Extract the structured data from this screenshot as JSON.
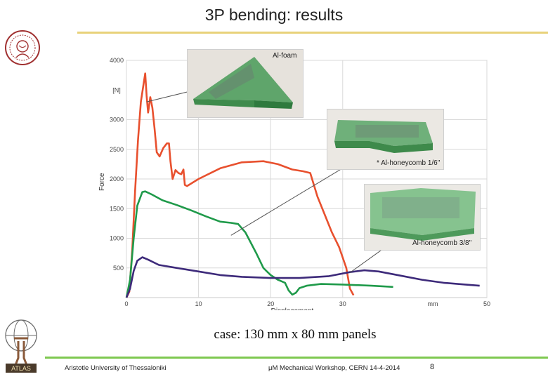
{
  "slide": {
    "title": "3P bending: results",
    "subtitle": "case: 130 mm x 80 mm panels",
    "footer_left": "Aristotle University of Thessaloniki",
    "footer_center": "μM Mechanical Workshop, CERN 14-4-2014",
    "page_number": "8",
    "accent_line_color": "#e8d27a",
    "footer_line_color": "#7ec850"
  },
  "logos": {
    "top_left": "university-seal-icon",
    "bottom_left": "atlas-logo-icon",
    "atlas_text": "ATLAS"
  },
  "photos": [
    {
      "label": "Al-foam",
      "icon": "al-foam-panel-photo"
    },
    {
      "label": "* Al-honeycomb 1/6\"",
      "icon": "al-honeycomb-1-6-panel-photo"
    },
    {
      "label": "Al-honeycomb 3/8\"",
      "icon": "al-honeycomb-3-8-panel-photo"
    }
  ],
  "chart_data": {
    "type": "line",
    "xlabel": "Displacement",
    "x_unit": "mm",
    "ylabel": "Force",
    "y_unit": "[N]",
    "xlim": [
      0,
      50
    ],
    "ylim": [
      0,
      4000
    ],
    "x_ticks": [
      0,
      10,
      20,
      30,
      50
    ],
    "y_ticks": [
      500,
      1000,
      1500,
      2000,
      2500,
      3000,
      4000
    ],
    "grid": true,
    "series": [
      {
        "color": "#e8502e",
        "points": [
          [
            0,
            0
          ],
          [
            0.4,
            100
          ],
          [
            0.8,
            800
          ],
          [
            1.2,
            1800
          ],
          [
            1.6,
            2650
          ],
          [
            2.0,
            3300
          ],
          [
            2.4,
            3620
          ],
          [
            2.6,
            3780
          ],
          [
            2.8,
            3400
          ],
          [
            3.0,
            3120
          ],
          [
            3.3,
            3380
          ],
          [
            3.6,
            3200
          ],
          [
            3.9,
            2850
          ],
          [
            4.2,
            2450
          ],
          [
            4.6,
            2380
          ],
          [
            5.1,
            2520
          ],
          [
            5.6,
            2600
          ],
          [
            5.9,
            2600
          ],
          [
            6.1,
            2300
          ],
          [
            6.4,
            2000
          ],
          [
            6.8,
            2150
          ],
          [
            7.2,
            2100
          ],
          [
            7.6,
            2080
          ],
          [
            7.9,
            2160
          ],
          [
            8.1,
            1900
          ],
          [
            8.4,
            1880
          ],
          [
            10,
            2000
          ],
          [
            13,
            2180
          ],
          [
            16,
            2280
          ],
          [
            19,
            2300
          ],
          [
            21,
            2250
          ],
          [
            23,
            2160
          ],
          [
            24.5,
            2130
          ],
          [
            25.5,
            2100
          ],
          [
            26.5,
            1700
          ],
          [
            27.5,
            1400
          ],
          [
            28.5,
            1100
          ],
          [
            29.5,
            850
          ],
          [
            30.5,
            500
          ],
          [
            31.0,
            150
          ],
          [
            31.5,
            40
          ]
        ]
      },
      {
        "color": "#1f9a4a",
        "points": [
          [
            0,
            0
          ],
          [
            0.5,
            300
          ],
          [
            1.0,
            1000
          ],
          [
            1.5,
            1550
          ],
          [
            2.2,
            1780
          ],
          [
            2.6,
            1790
          ],
          [
            3.5,
            1740
          ],
          [
            5,
            1640
          ],
          [
            7,
            1560
          ],
          [
            9,
            1470
          ],
          [
            11,
            1370
          ],
          [
            13,
            1280
          ],
          [
            14.5,
            1260
          ],
          [
            15.5,
            1240
          ],
          [
            16.5,
            1100
          ],
          [
            18,
            750
          ],
          [
            19,
            500
          ],
          [
            20,
            380
          ],
          [
            21,
            300
          ],
          [
            22,
            250
          ],
          [
            22.5,
            120
          ],
          [
            23,
            50
          ],
          [
            23.5,
            80
          ],
          [
            24,
            160
          ],
          [
            25,
            200
          ],
          [
            27,
            230
          ],
          [
            30,
            220
          ],
          [
            34,
            200
          ],
          [
            37,
            180
          ]
        ]
      },
      {
        "color": "#3d2a7a",
        "points": [
          [
            0,
            0
          ],
          [
            0.5,
            150
          ],
          [
            1.0,
            450
          ],
          [
            1.5,
            620
          ],
          [
            2.2,
            680
          ],
          [
            3,
            640
          ],
          [
            4.5,
            550
          ],
          [
            7,
            500
          ],
          [
            10,
            440
          ],
          [
            13,
            380
          ],
          [
            16,
            350
          ],
          [
            20,
            330
          ],
          [
            24,
            330
          ],
          [
            28,
            360
          ],
          [
            31,
            430
          ],
          [
            33,
            460
          ],
          [
            35,
            440
          ],
          [
            38,
            370
          ],
          [
            41,
            300
          ],
          [
            44,
            250
          ],
          [
            47,
            220
          ],
          [
            49,
            200
          ]
        ]
      }
    ]
  }
}
